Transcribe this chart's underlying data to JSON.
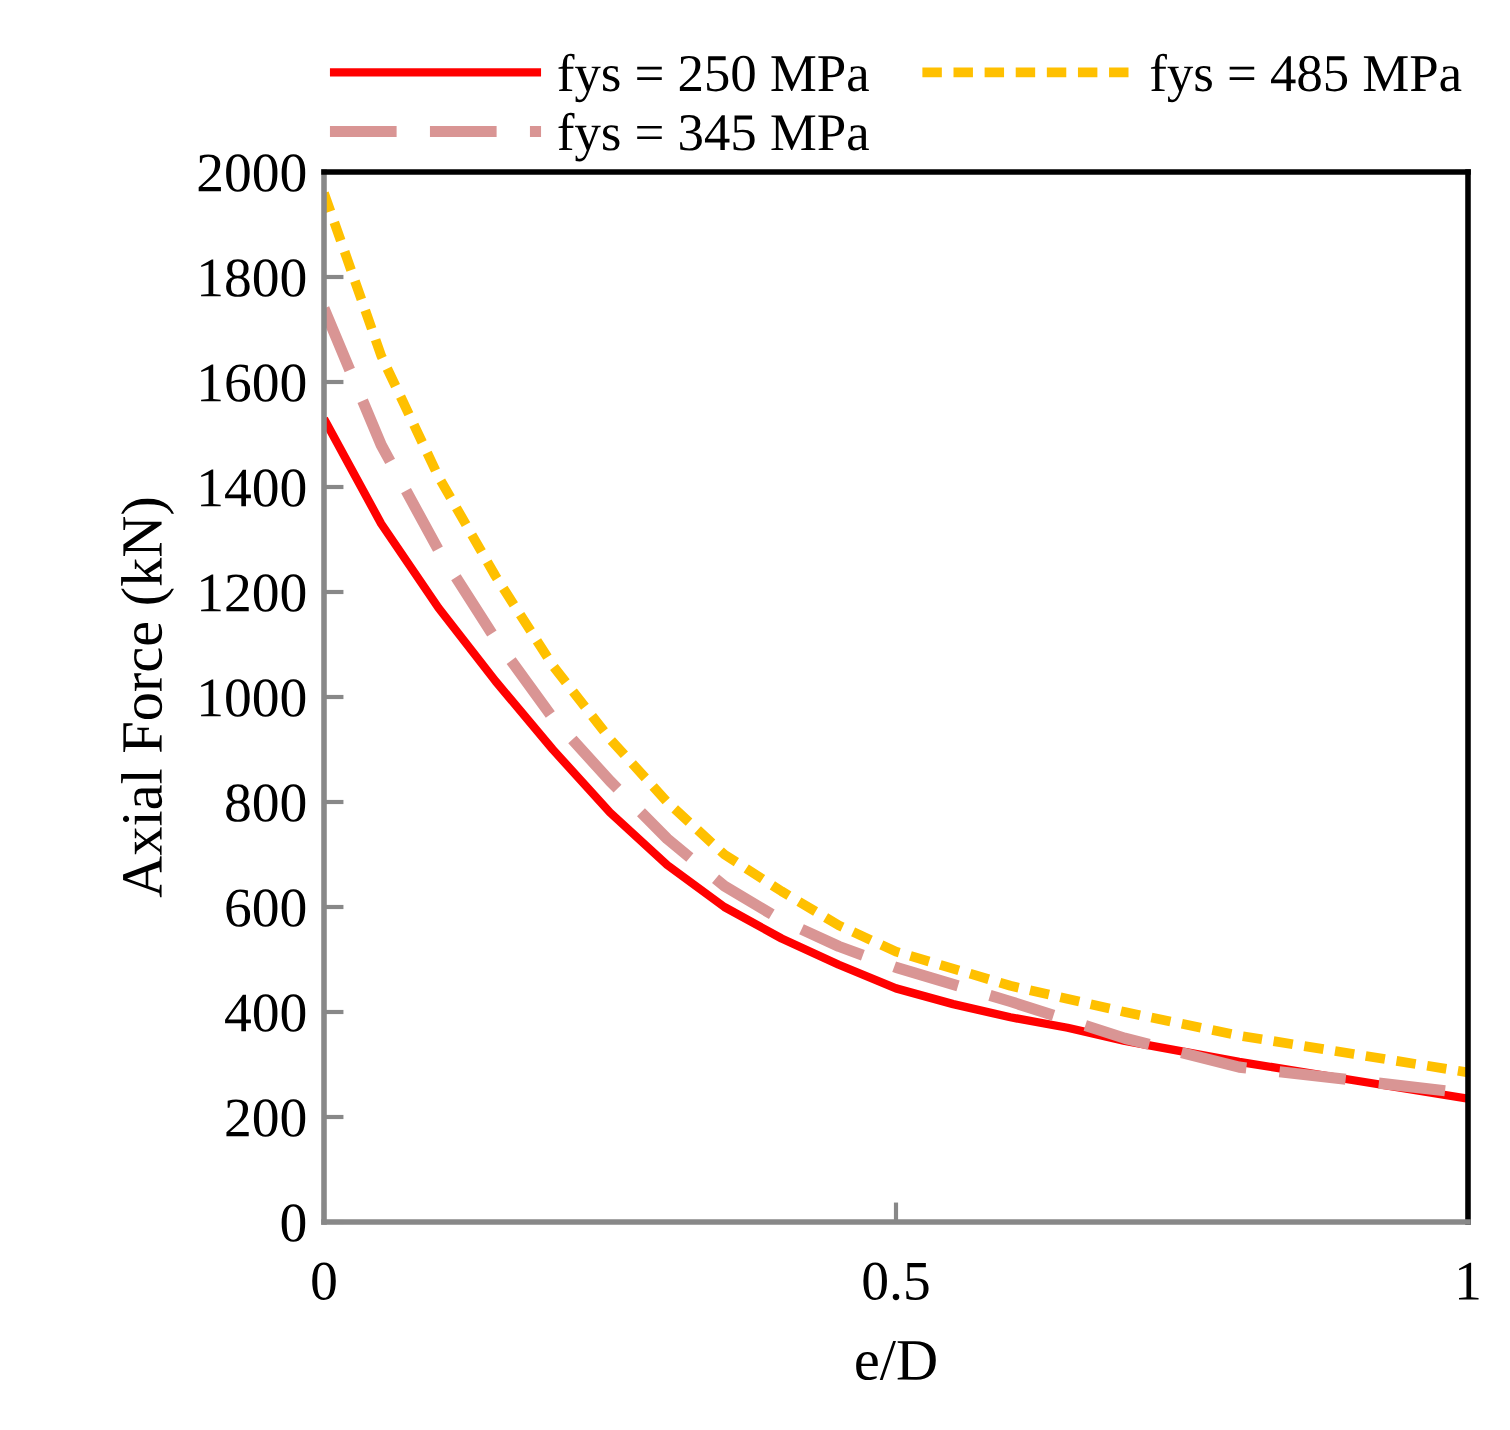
{
  "chart_data": {
    "type": "line",
    "xlabel": "e/D",
    "ylabel": "Axial Force (kN)",
    "xlim": [
      0,
      1
    ],
    "xticks": [
      0,
      0.5,
      1
    ],
    "ylim": [
      0,
      2000
    ],
    "yticks": [
      0,
      200,
      400,
      600,
      800,
      1000,
      1200,
      1400,
      1600,
      1800,
      2000
    ],
    "grid": false,
    "legend": "top",
    "marker": "none",
    "series": [
      {
        "name": "fys = 250 MPa",
        "color": "#ff0000",
        "line_style": "solid",
        "x": [
          0,
          0.05,
          0.1,
          0.15,
          0.2,
          0.25,
          0.3,
          0.35,
          0.4,
          0.45,
          0.5,
          0.55,
          0.6,
          0.65,
          0.7,
          0.8,
          0.9,
          1
        ],
        "values": [
          1530,
          1330,
          1170,
          1030,
          900,
          780,
          680,
          600,
          540,
          490,
          445,
          415,
          390,
          370,
          345,
          305,
          270,
          235
        ]
      },
      {
        "name": "fys = 345 MPa",
        "color": "#d99594",
        "line_style": "dashed",
        "x": [
          0,
          0.05,
          0.1,
          0.15,
          0.2,
          0.25,
          0.3,
          0.35,
          0.4,
          0.45,
          0.5,
          0.6,
          0.65,
          0.7,
          0.8,
          0.9,
          1
        ],
        "values": [
          1740,
          1480,
          1280,
          1110,
          960,
          840,
          730,
          640,
          575,
          525,
          485,
          420,
          385,
          350,
          295,
          270,
          245
        ]
      },
      {
        "name": "fys = 485 MPa",
        "color": "#ffc000",
        "line_style": "dotted",
        "x": [
          0,
          0.05,
          0.1,
          0.15,
          0.2,
          0.25,
          0.3,
          0.35,
          0.4,
          0.45,
          0.5,
          0.6,
          0.7,
          0.8,
          0.9,
          1
        ],
        "values": [
          1960,
          1650,
          1420,
          1230,
          1060,
          920,
          800,
          700,
          630,
          565,
          515,
          450,
          400,
          355,
          320,
          285
        ]
      }
    ]
  }
}
